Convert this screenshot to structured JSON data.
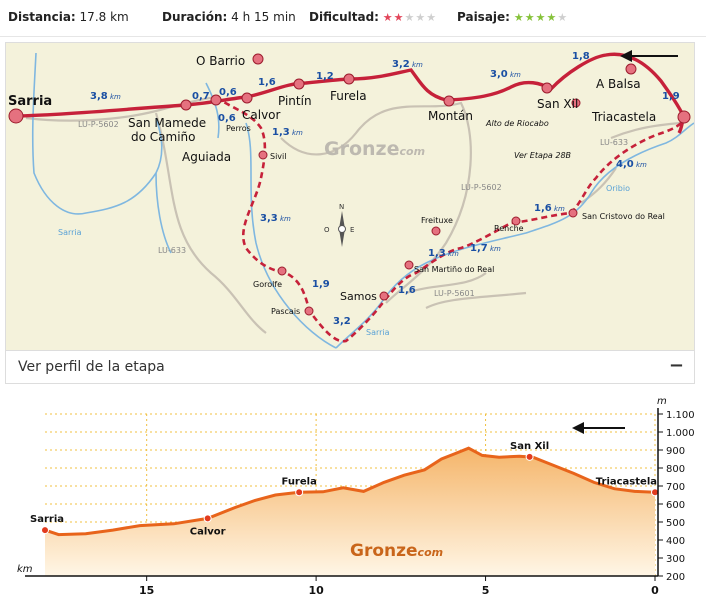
{
  "stats": {
    "distance_label": "Distancia:",
    "distance_value": "17.8 km",
    "duration_label": "Duración:",
    "duration_value": "4 h 15 min",
    "difficulty_label": "Dificultad:",
    "difficulty_stars": "★★★★★",
    "difficulty_level": 2,
    "landscape_label": "Paisaje:",
    "landscape_stars": "★★★★★",
    "landscape_level": 4
  },
  "map": {
    "brand": "Gronze",
    "brand_suffix": "com",
    "compass": {
      "n": "N",
      "e": "E",
      "o": "O"
    },
    "places": {
      "sarria": "Sarria",
      "obarrio": "O Barrio",
      "sanmamede1": "San Mamede",
      "sanmamede2": "do Camiño",
      "aguiada": "Aguiada",
      "perros": "Perros",
      "calvor": "Calvor",
      "pintin": "Pintín",
      "furela": "Furela",
      "montan": "Montán",
      "riocabo": "Alto de Riocabo",
      "sanxil": "San Xil",
      "abalsa": "A Balsa",
      "triacastela": "Triacastela",
      "sivil": "Sivil",
      "gorolfe": "Gorolfe",
      "pascais": "Pascais",
      "samos": "Samos",
      "sanmartino": "San Martiño do Real",
      "freituxe": "Freituxe",
      "renche": "Renche",
      "sancristovo": "San Cristovo do Real",
      "veretapa": "Ver Etapa 28B"
    },
    "rivers": {
      "sarria1": "Sarria",
      "sarria2": "Sarria",
      "oribio": "Oribio"
    },
    "roads": {
      "lup5602a": "LU-P-5602",
      "lup5602b": "LU-P-5602",
      "lu633a": "LU-633",
      "lu633b": "LU-633",
      "lup5601": "LU-P-5601"
    },
    "distances": {
      "d1": "3,8",
      "d2": "0,7",
      "d3": "0,6",
      "d4": "1,6",
      "d5": "1,2",
      "d6": "3,2",
      "d7": "3,0",
      "d8": "1,8",
      "d9": "1,9",
      "d10": "0,6",
      "d11": "1,3",
      "d12": "3,3",
      "d13": "1,9",
      "d14": "3,2",
      "d15": "1,6",
      "d16": "1,3",
      "d17": "1,7",
      "d18": "1,6",
      "d19": "4,0"
    },
    "km_unit": "km"
  },
  "panel": {
    "title": "Ver perfil de la etapa",
    "toggle": "−"
  },
  "chart_data": {
    "type": "area",
    "x_unit": "km",
    "y_unit": "m",
    "xlim": [
      18.0,
      0
    ],
    "ylim": [
      200,
      1100
    ],
    "x_ticks": [
      15,
      10,
      5,
      0
    ],
    "x_tick_labels": [
      "15",
      "10",
      "5",
      "0"
    ],
    "y_ticks": [
      200,
      300,
      400,
      500,
      600,
      700,
      800,
      900,
      1000,
      1100
    ],
    "y_tick_labels": [
      "200",
      "300",
      "400",
      "500",
      "600",
      "700",
      "800",
      "900",
      "1.000",
      "1.100"
    ],
    "points": [
      {
        "x": 18.0,
        "y": 455
      },
      {
        "x": 17.6,
        "y": 430
      },
      {
        "x": 16.8,
        "y": 435
      },
      {
        "x": 16.0,
        "y": 455
      },
      {
        "x": 15.2,
        "y": 480
      },
      {
        "x": 14.2,
        "y": 490
      },
      {
        "x": 13.2,
        "y": 520
      },
      {
        "x": 12.4,
        "y": 580
      },
      {
        "x": 11.8,
        "y": 620
      },
      {
        "x": 11.2,
        "y": 650
      },
      {
        "x": 10.5,
        "y": 665
      },
      {
        "x": 9.8,
        "y": 668
      },
      {
        "x": 9.2,
        "y": 690
      },
      {
        "x": 8.6,
        "y": 670
      },
      {
        "x": 8.0,
        "y": 720
      },
      {
        "x": 7.4,
        "y": 760
      },
      {
        "x": 6.8,
        "y": 790
      },
      {
        "x": 6.3,
        "y": 850
      },
      {
        "x": 5.9,
        "y": 880
      },
      {
        "x": 5.5,
        "y": 910
      },
      {
        "x": 5.1,
        "y": 870
      },
      {
        "x": 4.6,
        "y": 860
      },
      {
        "x": 4.0,
        "y": 865
      },
      {
        "x": 3.6,
        "y": 860
      },
      {
        "x": 3.2,
        "y": 830
      },
      {
        "x": 2.4,
        "y": 770
      },
      {
        "x": 1.8,
        "y": 720
      },
      {
        "x": 1.2,
        "y": 685
      },
      {
        "x": 0.6,
        "y": 670
      },
      {
        "x": 0.0,
        "y": 665
      }
    ],
    "markers": [
      {
        "label": "Sarria",
        "x": 18.0,
        "y": 455
      },
      {
        "label": "Calvor",
        "x": 13.2,
        "y": 520
      },
      {
        "label": "Furela",
        "x": 10.5,
        "y": 665
      },
      {
        "label": "San Xil",
        "x": 3.7,
        "y": 862
      },
      {
        "label": "Triacastela",
        "x": 0.0,
        "y": 665
      }
    ],
    "brand": "Gronze",
    "brand_suffix": "com",
    "line_color": "#e8641b",
    "fill_top": "#f5b56a",
    "fill_bottom": "#fff6e6"
  }
}
